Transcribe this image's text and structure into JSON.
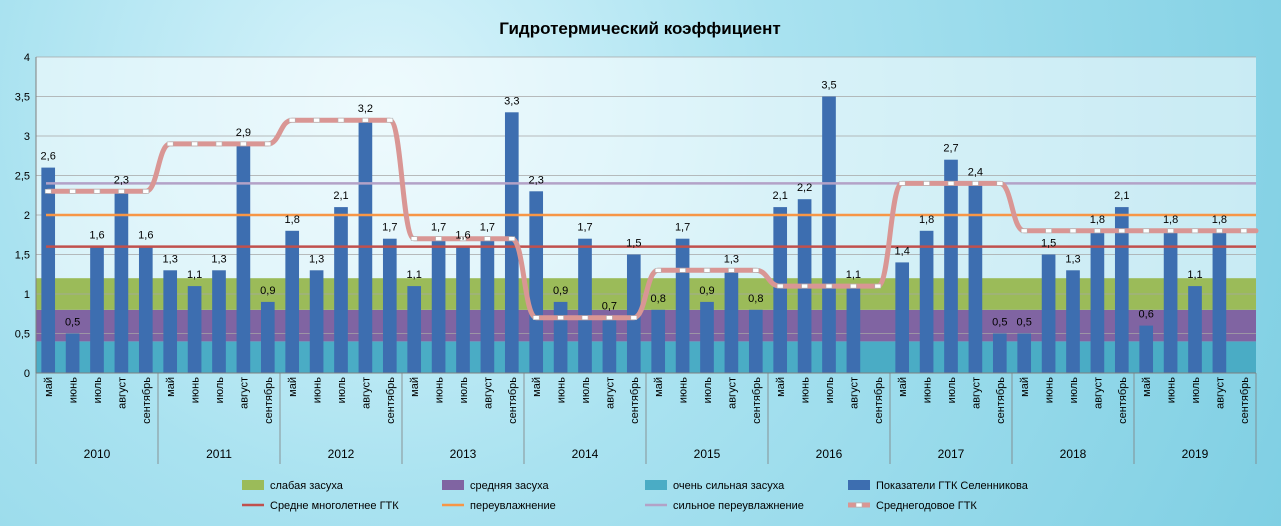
{
  "chart_data": {
    "type": "bar",
    "title": "Гидротермический коэффициент",
    "ylim": [
      0,
      4
    ],
    "yticks": [
      "0",
      "0,5",
      "1",
      "1,5",
      "2",
      "2,5",
      "3",
      "3,5",
      "4"
    ],
    "years": [
      "2010",
      "2011",
      "2012",
      "2013",
      "2014",
      "2015",
      "2016",
      "2017",
      "2018",
      "2019"
    ],
    "months": [
      "май",
      "июнь",
      "июль",
      "август",
      "сентябрь"
    ],
    "series": [
      {
        "name": "Показатели ГТК Селенникова",
        "color": "#3d6eb0",
        "values": [
          2.6,
          0.5,
          1.6,
          2.3,
          1.6,
          1.3,
          1.1,
          1.3,
          2.9,
          0.9,
          1.8,
          1.3,
          2.1,
          3.2,
          1.7,
          1.1,
          1.7,
          1.6,
          1.7,
          3.3,
          2.3,
          0.9,
          1.7,
          0.7,
          1.5,
          0.8,
          1.7,
          0.9,
          1.3,
          0.8,
          2.1,
          2.2,
          3.5,
          1.1,
          0,
          1.4,
          1.8,
          2.7,
          2.4,
          0.5,
          0.5,
          1.5,
          1.3,
          1.8,
          2.1,
          0.6,
          1.8,
          1.1,
          1.8,
          0
        ]
      },
      {
        "name": "Среднегодовое ГТК",
        "color": "#d99694",
        "values": [
          2.3,
          2.9,
          3.2,
          1.7,
          0.7,
          1.3,
          1.1,
          2.4,
          1.8,
          1.8
        ]
      }
    ],
    "data_labels": [
      "2,6",
      "0,5",
      "1,6",
      "2,3",
      "1,6",
      "1,3",
      "1,1",
      "1,3",
      "2,9",
      "0,9",
      "1,8",
      "1,3",
      "2,1",
      "3,2",
      "1,7",
      "1,1",
      "1,7",
      "1,6",
      "1,7",
      "3,3",
      "2,3",
      "0,9",
      "1,7",
      "0,7",
      "1,5",
      "0,8",
      "1,7",
      "0,9",
      "1,3",
      "0,8",
      "2,1",
      "2,2",
      "3,5",
      "1,1",
      "",
      "1,4",
      "1,8",
      "2,7",
      "2,4",
      "0,5",
      "0,5",
      "1,5",
      "1,3",
      "1,8",
      "2,1",
      "0,6",
      "1,8",
      "1,1",
      "1,8",
      ""
    ],
    "bands": [
      {
        "name": "очень сильная засуха",
        "from": 0,
        "to": 0.4,
        "color": "#4aacc5"
      },
      {
        "name": "средняя засуха",
        "from": 0.4,
        "to": 0.8,
        "color": "#8064a2"
      },
      {
        "name": "слабая засуха",
        "from": 0.8,
        "to": 1.2,
        "color": "#9bbb59"
      }
    ],
    "lines": [
      {
        "name": "Средне многолетнее ГТК",
        "value": 1.6,
        "color": "#c0504d"
      },
      {
        "name": "переувлажнение",
        "value": 2.0,
        "color": "#f79646"
      },
      {
        "name": "сильное переувлажнение",
        "value": 2.4,
        "color": "#b3a2c7"
      }
    ],
    "legend": {
      "position": "bottom",
      "items": [
        {
          "name": "слабая засуха",
          "kind": "box",
          "color": "#9bbb59"
        },
        {
          "name": "средняя засуха",
          "kind": "box",
          "color": "#8064a2"
        },
        {
          "name": "очень сильная засуха",
          "kind": "box",
          "color": "#4aacc5"
        },
        {
          "name": "Показатели ГТК Селенникова",
          "kind": "box",
          "color": "#3d6eb0"
        },
        {
          "name": "Средне многолетнее ГТК",
          "kind": "line",
          "color": "#c0504d"
        },
        {
          "name": "переувлажнение",
          "kind": "line",
          "color": "#f79646"
        },
        {
          "name": "сильное переувлажнение",
          "kind": "line",
          "color": "#b3a2c7"
        },
        {
          "name": "Среднегодовое ГТК",
          "kind": "thick",
          "color": "#d99694"
        }
      ]
    },
    "grid": true
  }
}
